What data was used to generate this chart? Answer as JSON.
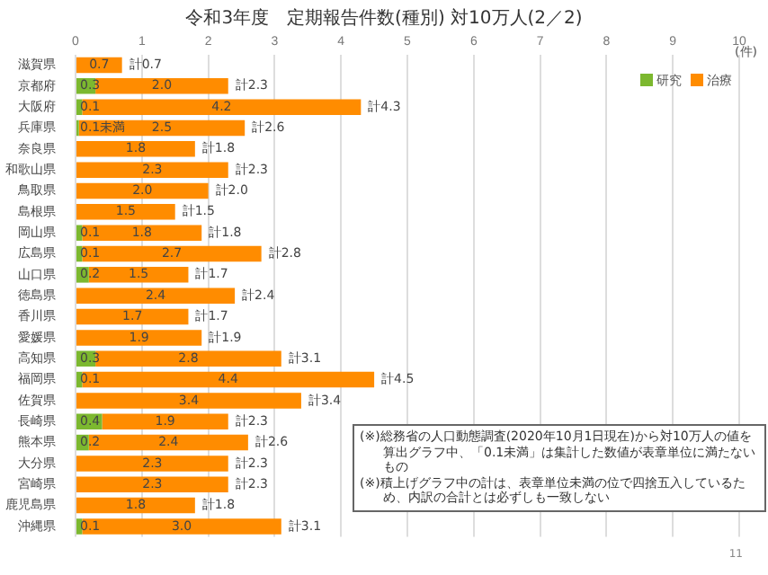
{
  "chart_data": {
    "type": "bar",
    "orientation": "horizontal",
    "stacked": true,
    "title": "令和3年度　定期報告件数(種別)  対10万人(2／2)",
    "categories": [
      "滋賀県",
      "京都府",
      "大阪府",
      "兵庫県",
      "奈良県",
      "和歌山県",
      "鳥取県",
      "島根県",
      "岡山県",
      "広島県",
      "山口県",
      "徳島県",
      "香川県",
      "愛媛県",
      "高知県",
      "福岡県",
      "佐賀県",
      "長崎県",
      "熊本県",
      "大分県",
      "宮崎県",
      "鹿児島県",
      "沖縄県"
    ],
    "series": [
      {
        "name": "研究",
        "color": "#7cb82f",
        "values": [
          null,
          0.3,
          0.1,
          0.05,
          null,
          null,
          null,
          null,
          0.1,
          0.1,
          0.2,
          null,
          null,
          null,
          0.3,
          0.1,
          null,
          0.4,
          0.2,
          null,
          null,
          null,
          0.1
        ],
        "value_labels": [
          null,
          "0.3",
          "0.1",
          "0.1未満",
          null,
          null,
          null,
          null,
          "0.1",
          "0.1",
          "0.2",
          null,
          null,
          null,
          "0.3",
          "0.1",
          null,
          "0.4",
          "0.2",
          null,
          null,
          null,
          "0.1"
        ]
      },
      {
        "name": "治療",
        "color": "#ff8c00",
        "values": [
          0.7,
          2.0,
          4.2,
          2.5,
          1.8,
          2.3,
          2.0,
          1.5,
          1.8,
          2.7,
          1.5,
          2.4,
          1.7,
          1.9,
          2.8,
          4.4,
          3.4,
          1.9,
          2.4,
          2.3,
          2.3,
          1.8,
          3.0
        ],
        "value_labels": [
          "0.7",
          "2.0",
          "4.2",
          "2.5",
          "1.8",
          "2.3",
          "2.0",
          "1.5",
          "1.8",
          "2.7",
          "1.5",
          "2.4",
          "1.7",
          "1.9",
          "2.8",
          "4.4",
          "3.4",
          "1.9",
          "2.4",
          "2.3",
          "2.3",
          "1.8",
          "3.0"
        ]
      }
    ],
    "totals": [
      "計0.7",
      "計2.3",
      "計4.3",
      "計2.6",
      "計1.8",
      "計2.3",
      "計2.0",
      "計1.5",
      "計1.8",
      "計2.8",
      "計1.7",
      "計2.4",
      "計1.7",
      "計1.9",
      "計3.1",
      "計4.5",
      "計3.4",
      "計2.3",
      "計2.6",
      "計2.3",
      "計2.3",
      "計1.8",
      "計3.1"
    ],
    "xlim": [
      0,
      10
    ],
    "xticks": [
      0,
      1,
      2,
      3,
      4,
      5,
      6,
      7,
      8,
      9,
      10
    ],
    "grid": "x",
    "legend": "top right",
    "annotations": [
      "(件)",
      "(※)総務省の人口動態調査(2020年10月1日現在)から対10万人の値を算出グラフ中、「0.1未満」は集計した数値が表章単位に満たないもの",
      "(※)積上げグラフ中の計は、表章単位未満の位で四捨五入しているため、内訳の合計とは必ずしも一致しない",
      "11"
    ]
  }
}
